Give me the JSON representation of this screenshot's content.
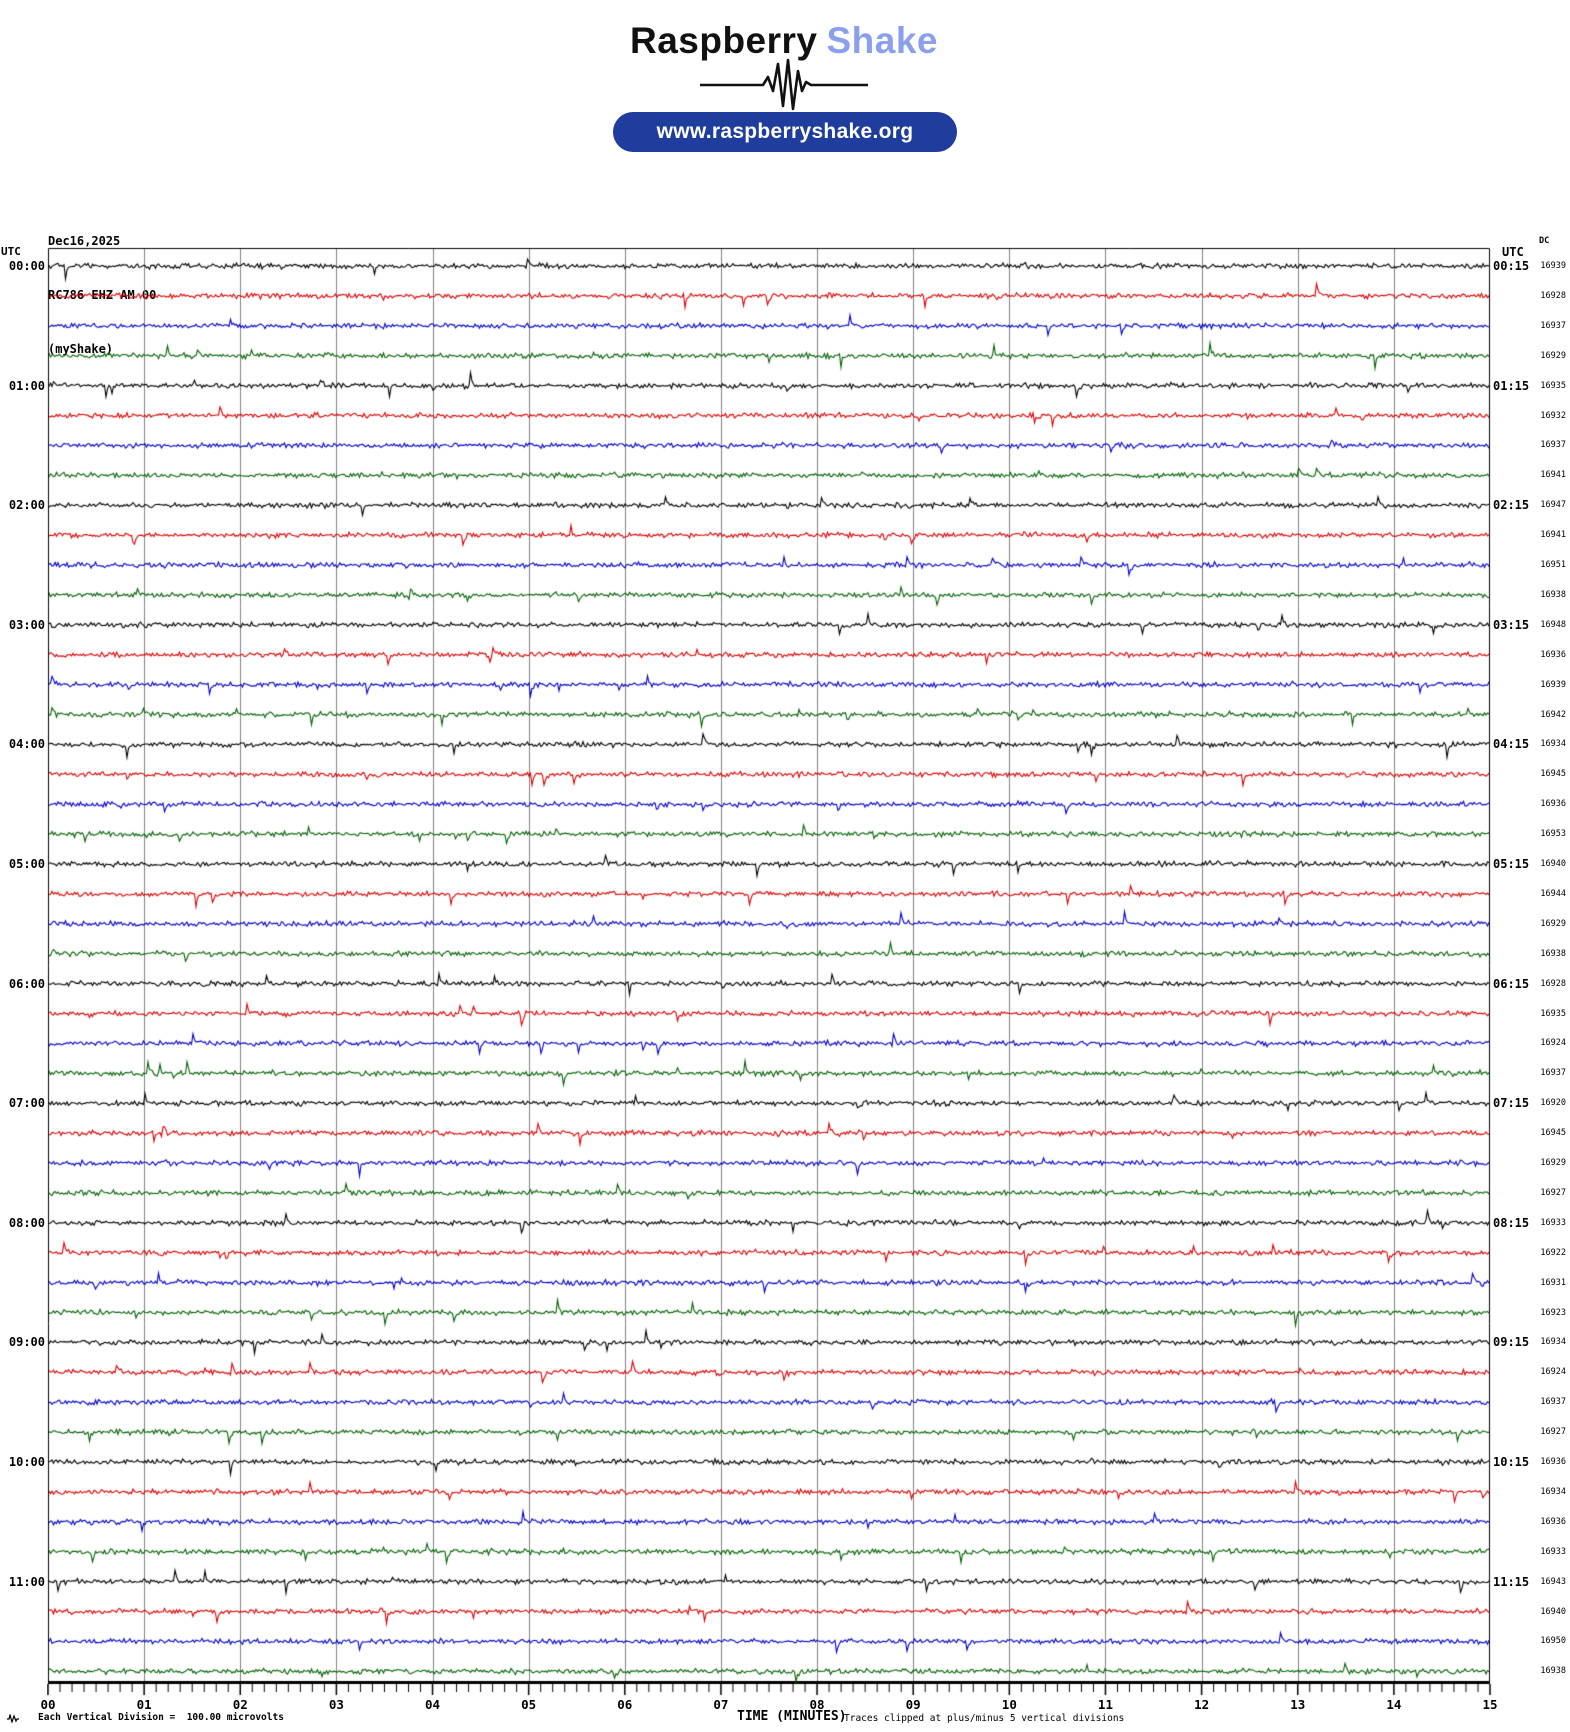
{
  "header": {
    "logo_primary": "Raspberry",
    "logo_secondary": "Shake",
    "logo_secondary_color": "#8aa0ee",
    "url_button": "www.raspberryshake.org",
    "url_button_color": "#1f3d9c"
  },
  "station": {
    "date": "Dec16,2025",
    "id": "RC786 EHZ AM 00",
    "network": "(myShake)"
  },
  "axes": {
    "left_header": "UTC",
    "right_header": "UTC",
    "dc_header": "DC",
    "x_title": "TIME (MINUTES)",
    "x_ticks": [
      "00",
      "01",
      "02",
      "03",
      "04",
      "05",
      "06",
      "07",
      "08",
      "09",
      "10",
      "11",
      "12",
      "13",
      "14",
      "15"
    ],
    "footer_left": "Each Vertical Division =  100.00 microvolts",
    "footer_right": "Traces clipped at plus/minus 5 vertical divisions"
  },
  "chart_data": {
    "type": "line",
    "subtype": "helicorder",
    "title": "RC786 EHZ AM 00 helicorder, Dec16,2025",
    "x_range_minutes": [
      0,
      15
    ],
    "minutes_per_line": 15,
    "lines_per_hour": 4,
    "grid": "vertical gridlines each minute",
    "vertical_division_microvolts": 100.0,
    "clip_divisions": 5,
    "trace_colors": {
      "black": "#000000",
      "red": "#dc0000",
      "blue": "#0000cd",
      "green": "#006400"
    },
    "gridline_color": "#808080",
    "rows": [
      {
        "utc_left": "00:00",
        "utc_right": "00:15",
        "color": "black",
        "dc": 16939
      },
      {
        "color": "red",
        "dc": 16928
      },
      {
        "color": "blue",
        "dc": 16937
      },
      {
        "color": "green",
        "dc": 16929
      },
      {
        "utc_left": "01:00",
        "utc_right": "01:15",
        "color": "black",
        "dc": 16935
      },
      {
        "color": "red",
        "dc": 16932
      },
      {
        "color": "blue",
        "dc": 16937
      },
      {
        "color": "green",
        "dc": 16941
      },
      {
        "utc_left": "02:00",
        "utc_right": "02:15",
        "color": "black",
        "dc": 16947
      },
      {
        "color": "red",
        "dc": 16941
      },
      {
        "color": "blue",
        "dc": 16951
      },
      {
        "color": "green",
        "dc": 16938
      },
      {
        "utc_left": "03:00",
        "utc_right": "03:15",
        "color": "black",
        "dc": 16948
      },
      {
        "color": "red",
        "dc": 16936
      },
      {
        "color": "blue",
        "dc": 16939
      },
      {
        "color": "green",
        "dc": 16942
      },
      {
        "utc_left": "04:00",
        "utc_right": "04:15",
        "color": "black",
        "dc": 16934
      },
      {
        "color": "red",
        "dc": 16945
      },
      {
        "color": "blue",
        "dc": 16936
      },
      {
        "color": "green",
        "dc": 16953
      },
      {
        "utc_left": "05:00",
        "utc_right": "05:15",
        "color": "black",
        "dc": 16940
      },
      {
        "color": "red",
        "dc": 16944
      },
      {
        "color": "blue",
        "dc": 16929
      },
      {
        "color": "green",
        "dc": 16938
      },
      {
        "utc_left": "06:00",
        "utc_right": "06:15",
        "color": "black",
        "dc": 16928
      },
      {
        "color": "red",
        "dc": 16935
      },
      {
        "color": "blue",
        "dc": 16924
      },
      {
        "color": "green",
        "dc": 16937
      },
      {
        "utc_left": "07:00",
        "utc_right": "07:15",
        "color": "black",
        "dc": 16920
      },
      {
        "color": "red",
        "dc": 16945
      },
      {
        "color": "blue",
        "dc": 16929
      },
      {
        "color": "green",
        "dc": 16927
      },
      {
        "utc_left": "08:00",
        "utc_right": "08:15",
        "color": "black",
        "dc": 16933
      },
      {
        "color": "red",
        "dc": 16922
      },
      {
        "color": "blue",
        "dc": 16931
      },
      {
        "color": "green",
        "dc": 16923
      },
      {
        "utc_left": "09:00",
        "utc_right": "09:15",
        "color": "black",
        "dc": 16934
      },
      {
        "color": "red",
        "dc": 16924
      },
      {
        "color": "blue",
        "dc": 16937
      },
      {
        "color": "green",
        "dc": 16927
      },
      {
        "utc_left": "10:00",
        "utc_right": "10:15",
        "color": "black",
        "dc": 16936
      },
      {
        "color": "red",
        "dc": 16934
      },
      {
        "color": "blue",
        "dc": 16936
      },
      {
        "color": "green",
        "dc": 16933
      },
      {
        "utc_left": "11:00",
        "utc_right": "11:15",
        "color": "black",
        "dc": 16943
      },
      {
        "color": "red",
        "dc": 16940
      },
      {
        "color": "blue",
        "dc": 16950
      },
      {
        "color": "green",
        "dc": 16938
      }
    ]
  }
}
